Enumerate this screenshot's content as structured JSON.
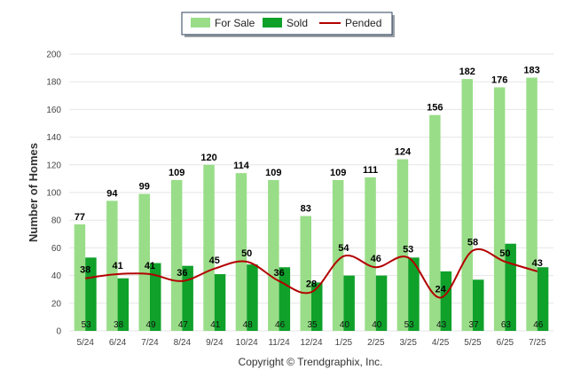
{
  "chart_data": {
    "type": "bar",
    "categories": [
      "5/24",
      "6/24",
      "7/24",
      "8/24",
      "9/24",
      "10/24",
      "11/24",
      "12/24",
      "1/25",
      "2/25",
      "3/25",
      "4/25",
      "5/25",
      "6/25",
      "7/25"
    ],
    "series": [
      {
        "name": "For Sale",
        "type": "bar",
        "color": "#99dd88",
        "values": [
          77,
          94,
          99,
          109,
          120,
          114,
          109,
          83,
          109,
          111,
          124,
          156,
          182,
          176,
          183
        ]
      },
      {
        "name": "Sold",
        "type": "bar",
        "color": "#0fa12a",
        "values": [
          53,
          38,
          49,
          47,
          41,
          48,
          46,
          35,
          40,
          40,
          53,
          43,
          37,
          63,
          46
        ]
      },
      {
        "name": "Pended",
        "type": "line",
        "color": "#b30000",
        "values": [
          38,
          41,
          41,
          36,
          45,
          50,
          36,
          28,
          54,
          46,
          53,
          24,
          58,
          50,
          43
        ]
      }
    ],
    "ylabel": "Number of Homes",
    "xlabel": "",
    "ylim": [
      0,
      200
    ],
    "yticks": [
      0,
      20,
      40,
      60,
      80,
      100,
      120,
      140,
      160,
      180,
      200
    ],
    "legend": "top-center",
    "grid": true
  },
  "footer": {
    "copyright": "Copyright © Trendgraphix, Inc."
  }
}
